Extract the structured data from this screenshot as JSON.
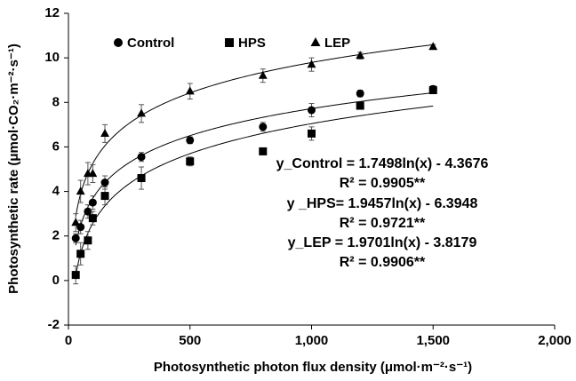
{
  "chart_data": {
    "type": "scatter",
    "xlabel": "Photosynthetic photon flux density (μmol·m⁻²·s⁻¹)",
    "ylabel": "Photosynthetic rate (μmol·CO₂·m⁻²·s⁻¹)",
    "x": [
      30,
      50,
      80,
      100,
      150,
      300,
      500,
      800,
      1000,
      1200,
      1500
    ],
    "series": [
      {
        "name": "Control",
        "marker": "circle",
        "color": "#000000",
        "values": [
          1.9,
          2.4,
          3.1,
          3.5,
          4.4,
          5.55,
          6.3,
          6.9,
          7.65,
          8.4,
          8.6
        ],
        "errors": [
          0.2,
          0.3,
          0.3,
          0.3,
          0.3,
          0.2,
          0.15,
          0.2,
          0.3,
          0.15,
          0.15
        ],
        "fit": {
          "a": 1.7498,
          "b": -4.3676
        }
      },
      {
        "name": "HPS",
        "marker": "square",
        "color": "#000000",
        "values": [
          0.25,
          1.2,
          1.8,
          2.8,
          3.8,
          4.6,
          5.35,
          5.8,
          6.6,
          7.85,
          8.55
        ],
        "errors": [
          0.4,
          0.5,
          0.4,
          0.3,
          0.4,
          0.5,
          0.2,
          0.1,
          0.3,
          0.1,
          0.15
        ],
        "fit": {
          "a": 1.9457,
          "b": -6.3948
        }
      },
      {
        "name": "LEP",
        "marker": "triangle",
        "color": "#000000",
        "values": [
          2.6,
          4.0,
          4.8,
          4.8,
          6.6,
          7.5,
          8.5,
          9.2,
          9.7,
          10.1,
          10.5
        ],
        "errors": [
          0.4,
          0.5,
          0.5,
          0.4,
          0.4,
          0.4,
          0.35,
          0.3,
          0.3,
          0.15,
          0.1
        ],
        "fit": {
          "a": 1.9701,
          "b": -3.8179
        }
      }
    ],
    "annotations": [
      "y_Control = 1.7498ln(x) - 4.3676",
      "R² = 0.9905**",
      "y _HPS= 1.9457ln(x) - 6.3948",
      "R² = 0.9721**",
      "y_LEP = 1.9701ln(x) - 3.8179",
      "R² = 0.9906**"
    ],
    "xlim": [
      0,
      2000
    ],
    "xticks": [
      0,
      500,
      {
        "value": 1000,
        "label": "1,000"
      },
      {
        "value": 1500,
        "label": "1,500"
      },
      {
        "value": 2000,
        "label": "2,000"
      }
    ],
    "ylim": [
      -2,
      12
    ],
    "yticks": [
      -2,
      0,
      2,
      4,
      6,
      8,
      10,
      12
    ],
    "grid": false
  }
}
